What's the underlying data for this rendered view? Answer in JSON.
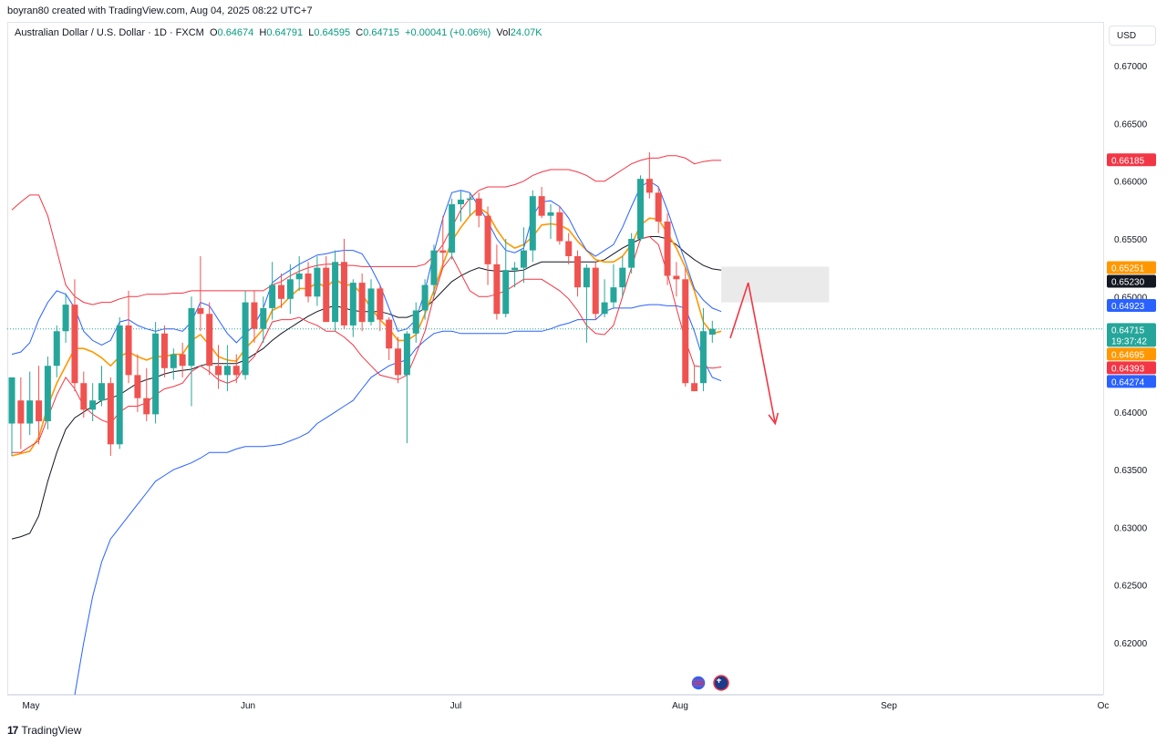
{
  "header": {
    "author_line": "boyran80 created with TradingView.com, Aug 04, 2025 08:22 UTC+7"
  },
  "legend": {
    "symbol": "Australian Dollar / U.S. Dollar · 1D · FXCM",
    "o_label": "O",
    "o_value": "0.64674",
    "h_label": "H",
    "h_value": "0.64791",
    "l_label": "L",
    "l_value": "0.64595",
    "c_label": "C",
    "c_value": "0.64715",
    "change": "+0.00041 (+0.06%)",
    "vol_label": "Vol",
    "vol_value": "24.07K"
  },
  "currency_button": "USD",
  "footer": {
    "brand": "TradingView",
    "logo_text": "17"
  },
  "colors": {
    "up": "#26a69a",
    "down": "#ef5350",
    "band_red": "#f23645",
    "band_blue": "#2962ff",
    "orange": "#ff9800",
    "black": "#131722",
    "zone": "#e8e8e8",
    "arrow": "#f23645"
  },
  "chart_data": {
    "type": "candlestick",
    "symbol": "AUDUSD",
    "timeframe": "1D",
    "ylim": [
      0.6155,
      0.6738
    ],
    "y_ticks": [
      "0.67000",
      "0.66500",
      "0.66000",
      "0.65500",
      "0.65000",
      "0.64500",
      "0.64000",
      "0.63500",
      "0.63000",
      "0.62500",
      "0.62000"
    ],
    "x_labels": [
      "May",
      "Jun",
      "Jul",
      "Aug",
      "Sep",
      "Oc"
    ],
    "candles": [
      {
        "o": 0.639,
        "h": 0.6425,
        "l": 0.6362,
        "c": 0.643
      },
      {
        "o": 0.641,
        "h": 0.643,
        "l": 0.6368,
        "c": 0.639
      },
      {
        "o": 0.639,
        "h": 0.6435,
        "l": 0.638,
        "c": 0.641
      },
      {
        "o": 0.641,
        "h": 0.644,
        "l": 0.6372,
        "c": 0.6392
      },
      {
        "o": 0.6392,
        "h": 0.6448,
        "l": 0.6385,
        "c": 0.644
      },
      {
        "o": 0.644,
        "h": 0.6475,
        "l": 0.643,
        "c": 0.647
      },
      {
        "o": 0.647,
        "h": 0.6503,
        "l": 0.646,
        "c": 0.6493
      },
      {
        "o": 0.6493,
        "h": 0.6515,
        "l": 0.6418,
        "c": 0.6425
      },
      {
        "o": 0.6425,
        "h": 0.6435,
        "l": 0.6395,
        "c": 0.6402
      },
      {
        "o": 0.6402,
        "h": 0.6425,
        "l": 0.6392,
        "c": 0.641
      },
      {
        "o": 0.641,
        "h": 0.644,
        "l": 0.6405,
        "c": 0.6425
      },
      {
        "o": 0.6425,
        "h": 0.643,
        "l": 0.6362,
        "c": 0.6372
      },
      {
        "o": 0.6372,
        "h": 0.6482,
        "l": 0.6368,
        "c": 0.6475
      },
      {
        "o": 0.6475,
        "h": 0.6505,
        "l": 0.6425,
        "c": 0.6432
      },
      {
        "o": 0.6432,
        "h": 0.645,
        "l": 0.64,
        "c": 0.6412
      },
      {
        "o": 0.6412,
        "h": 0.6438,
        "l": 0.6392,
        "c": 0.6398
      },
      {
        "o": 0.6398,
        "h": 0.6478,
        "l": 0.639,
        "c": 0.6468
      },
      {
        "o": 0.6468,
        "h": 0.6475,
        "l": 0.643,
        "c": 0.6438
      },
      {
        "o": 0.6438,
        "h": 0.6455,
        "l": 0.6428,
        "c": 0.645
      },
      {
        "o": 0.645,
        "h": 0.646,
        "l": 0.643,
        "c": 0.644
      },
      {
        "o": 0.644,
        "h": 0.65,
        "l": 0.6405,
        "c": 0.649
      },
      {
        "o": 0.649,
        "h": 0.6535,
        "l": 0.647,
        "c": 0.6485
      },
      {
        "o": 0.6485,
        "h": 0.6495,
        "l": 0.6432,
        "c": 0.644
      },
      {
        "o": 0.644,
        "h": 0.6458,
        "l": 0.642,
        "c": 0.6432
      },
      {
        "o": 0.6432,
        "h": 0.6458,
        "l": 0.6418,
        "c": 0.644
      },
      {
        "o": 0.644,
        "h": 0.645,
        "l": 0.6425,
        "c": 0.6432
      },
      {
        "o": 0.6432,
        "h": 0.6505,
        "l": 0.6428,
        "c": 0.6495
      },
      {
        "o": 0.6495,
        "h": 0.6505,
        "l": 0.646,
        "c": 0.6472
      },
      {
        "o": 0.6472,
        "h": 0.65,
        "l": 0.646,
        "c": 0.649
      },
      {
        "o": 0.649,
        "h": 0.653,
        "l": 0.648,
        "c": 0.651
      },
      {
        "o": 0.651,
        "h": 0.652,
        "l": 0.649,
        "c": 0.6498
      },
      {
        "o": 0.6498,
        "h": 0.6528,
        "l": 0.6485,
        "c": 0.6515
      },
      {
        "o": 0.6515,
        "h": 0.6535,
        "l": 0.6505,
        "c": 0.652
      },
      {
        "o": 0.652,
        "h": 0.653,
        "l": 0.6495,
        "c": 0.65
      },
      {
        "o": 0.65,
        "h": 0.6535,
        "l": 0.6492,
        "c": 0.6525
      },
      {
        "o": 0.6525,
        "h": 0.6535,
        "l": 0.6478,
        "c": 0.6478
      },
      {
        "o": 0.6478,
        "h": 0.654,
        "l": 0.647,
        "c": 0.653
      },
      {
        "o": 0.653,
        "h": 0.655,
        "l": 0.6472,
        "c": 0.6475
      },
      {
        "o": 0.6475,
        "h": 0.6515,
        "l": 0.6465,
        "c": 0.6512
      },
      {
        "o": 0.6512,
        "h": 0.652,
        "l": 0.647,
        "c": 0.6478
      },
      {
        "o": 0.6478,
        "h": 0.6515,
        "l": 0.6475,
        "c": 0.6507
      },
      {
        "o": 0.6507,
        "h": 0.651,
        "l": 0.647,
        "c": 0.648
      },
      {
        "o": 0.648,
        "h": 0.6482,
        "l": 0.6445,
        "c": 0.6455
      },
      {
        "o": 0.6455,
        "h": 0.6465,
        "l": 0.6425,
        "c": 0.6432
      },
      {
        "o": 0.6432,
        "h": 0.647,
        "l": 0.6373,
        "c": 0.6468
      },
      {
        "o": 0.6468,
        "h": 0.6495,
        "l": 0.646,
        "c": 0.6488
      },
      {
        "o": 0.6488,
        "h": 0.6515,
        "l": 0.648,
        "c": 0.651
      },
      {
        "o": 0.651,
        "h": 0.6545,
        "l": 0.65,
        "c": 0.654
      },
      {
        "o": 0.654,
        "h": 0.657,
        "l": 0.6525,
        "c": 0.6538
      },
      {
        "o": 0.6538,
        "h": 0.6585,
        "l": 0.6532,
        "c": 0.658
      },
      {
        "o": 0.658,
        "h": 0.6592,
        "l": 0.6565,
        "c": 0.6584
      },
      {
        "o": 0.6584,
        "h": 0.659,
        "l": 0.657,
        "c": 0.6585
      },
      {
        "o": 0.6585,
        "h": 0.659,
        "l": 0.656,
        "c": 0.657
      },
      {
        "o": 0.657,
        "h": 0.6578,
        "l": 0.651,
        "c": 0.6528
      },
      {
        "o": 0.6528,
        "h": 0.6545,
        "l": 0.648,
        "c": 0.6485
      },
      {
        "o": 0.6485,
        "h": 0.655,
        "l": 0.6482,
        "c": 0.6523
      },
      {
        "o": 0.6523,
        "h": 0.653,
        "l": 0.6508,
        "c": 0.6525
      },
      {
        "o": 0.6525,
        "h": 0.656,
        "l": 0.6512,
        "c": 0.654
      },
      {
        "o": 0.654,
        "h": 0.6592,
        "l": 0.653,
        "c": 0.6587
      },
      {
        "o": 0.6587,
        "h": 0.6595,
        "l": 0.6568,
        "c": 0.657
      },
      {
        "o": 0.657,
        "h": 0.658,
        "l": 0.655,
        "c": 0.6573
      },
      {
        "o": 0.6573,
        "h": 0.6578,
        "l": 0.6545,
        "c": 0.6548
      },
      {
        "o": 0.6548,
        "h": 0.6555,
        "l": 0.6528,
        "c": 0.6535
      },
      {
        "o": 0.6535,
        "h": 0.654,
        "l": 0.65,
        "c": 0.6508
      },
      {
        "o": 0.6508,
        "h": 0.6528,
        "l": 0.646,
        "c": 0.6525
      },
      {
        "o": 0.6525,
        "h": 0.653,
        "l": 0.648,
        "c": 0.6485
      },
      {
        "o": 0.6485,
        "h": 0.6515,
        "l": 0.6482,
        "c": 0.6495
      },
      {
        "o": 0.6495,
        "h": 0.6528,
        "l": 0.649,
        "c": 0.6508
      },
      {
        "o": 0.6508,
        "h": 0.6535,
        "l": 0.65,
        "c": 0.6525
      },
      {
        "o": 0.6525,
        "h": 0.6555,
        "l": 0.652,
        "c": 0.655
      },
      {
        "o": 0.655,
        "h": 0.6605,
        "l": 0.6548,
        "c": 0.6602
      },
      {
        "o": 0.6602,
        "h": 0.6625,
        "l": 0.6585,
        "c": 0.659
      },
      {
        "o": 0.659,
        "h": 0.6595,
        "l": 0.6555,
        "c": 0.6565
      },
      {
        "o": 0.6565,
        "h": 0.6572,
        "l": 0.651,
        "c": 0.6518
      },
      {
        "o": 0.6518,
        "h": 0.653,
        "l": 0.65,
        "c": 0.6515
      },
      {
        "o": 0.6515,
        "h": 0.6525,
        "l": 0.6422,
        "c": 0.6425
      },
      {
        "o": 0.6425,
        "h": 0.644,
        "l": 0.6418,
        "c": 0.6418
      },
      {
        "o": 0.6425,
        "h": 0.649,
        "l": 0.6418,
        "c": 0.647
      },
      {
        "o": 0.6467,
        "h": 0.6479,
        "l": 0.646,
        "c": 0.6472
      }
    ],
    "indicators": [
      {
        "name": "upper-band-red",
        "color": "#f23645",
        "values": [
          0.6575,
          0.6582,
          0.6588,
          0.6588,
          0.657,
          0.654,
          0.651,
          0.65,
          0.6495,
          0.6493,
          0.6495,
          0.6495,
          0.6498,
          0.65,
          0.65,
          0.6502,
          0.6502,
          0.6502,
          0.6503,
          0.6503,
          0.6505,
          0.6505,
          0.6505,
          0.6505,
          0.6505,
          0.6505,
          0.6505,
          0.6505,
          0.6505,
          0.651,
          0.6513,
          0.6518,
          0.6522,
          0.6525,
          0.6527,
          0.6528,
          0.6528,
          0.6527,
          0.6527,
          0.6526,
          0.6526,
          0.6526,
          0.6526,
          0.6526,
          0.6526,
          0.6526,
          0.6528,
          0.6535,
          0.6545,
          0.656,
          0.6575,
          0.6585,
          0.6592,
          0.6595,
          0.6595,
          0.6595,
          0.6597,
          0.66,
          0.6605,
          0.6608,
          0.661,
          0.661,
          0.661,
          0.6608,
          0.6605,
          0.66,
          0.66,
          0.6605,
          0.661,
          0.6615,
          0.6618,
          0.662,
          0.662,
          0.6622,
          0.6622,
          0.662,
          0.6615,
          0.6617,
          0.6618,
          0.6618
        ]
      },
      {
        "name": "lower-band-blue",
        "color": "#2962ff",
        "values": [
          null,
          null,
          null,
          null,
          null,
          null,
          null,
          0.6155,
          0.62,
          0.624,
          0.627,
          0.629,
          0.63,
          0.631,
          0.632,
          0.633,
          0.634,
          0.6345,
          0.635,
          0.6353,
          0.6356,
          0.636,
          0.6365,
          0.6365,
          0.6365,
          0.6368,
          0.637,
          0.637,
          0.637,
          0.6371,
          0.6372,
          0.6375,
          0.6378,
          0.6382,
          0.639,
          0.6395,
          0.64,
          0.6405,
          0.641,
          0.642,
          0.643,
          0.6435,
          0.644,
          0.6443,
          0.6445,
          0.6455,
          0.6462,
          0.6468,
          0.647,
          0.647,
          0.6468,
          0.6468,
          0.6468,
          0.6468,
          0.6468,
          0.6468,
          0.647,
          0.647,
          0.647,
          0.647,
          0.6472,
          0.6475,
          0.6477,
          0.648,
          0.648,
          0.648,
          0.6487,
          0.649,
          0.649,
          0.649,
          0.6492,
          0.6493,
          0.6493,
          0.6492,
          0.6492,
          0.649,
          0.647,
          0.6445,
          0.643,
          0.6427
        ]
      },
      {
        "name": "ma-black",
        "color": "#131722",
        "values": [
          0.629,
          0.6292,
          0.6295,
          0.631,
          0.634,
          0.6365,
          0.6385,
          0.6395,
          0.64,
          0.6405,
          0.641,
          0.6412,
          0.6415,
          0.642,
          0.6425,
          0.6428,
          0.643,
          0.6433,
          0.6435,
          0.6436,
          0.6437,
          0.644,
          0.6442,
          0.6442,
          0.6442,
          0.6442,
          0.6445,
          0.645,
          0.6455,
          0.6462,
          0.6468,
          0.6473,
          0.6478,
          0.6483,
          0.6487,
          0.649,
          0.6492,
          0.649,
          0.6488,
          0.6487,
          0.6487,
          0.6487,
          0.6485,
          0.6482,
          0.6482,
          0.6485,
          0.649,
          0.6497,
          0.6505,
          0.6513,
          0.6518,
          0.6522,
          0.6525,
          0.6523,
          0.6522,
          0.6522,
          0.6522,
          0.6523,
          0.6527,
          0.653,
          0.653,
          0.653,
          0.653,
          0.653,
          0.653,
          0.653,
          0.6532,
          0.6537,
          0.6542,
          0.6546,
          0.655,
          0.6552,
          0.6552,
          0.655,
          0.6545,
          0.6538,
          0.6532,
          0.6527,
          0.6524,
          0.6523
        ]
      },
      {
        "name": "ema-orange",
        "color": "#ff9800",
        "values": [
          0.6362,
          0.6364,
          0.6366,
          0.6378,
          0.6405,
          0.6425,
          0.644,
          0.6455,
          0.6455,
          0.6452,
          0.6447,
          0.644,
          0.6448,
          0.6452,
          0.6448,
          0.6445,
          0.6448,
          0.6448,
          0.645,
          0.645,
          0.6462,
          0.6467,
          0.6458,
          0.6448,
          0.6445,
          0.6444,
          0.6455,
          0.6463,
          0.6472,
          0.6488,
          0.6492,
          0.65,
          0.6507,
          0.6507,
          0.6512,
          0.6508,
          0.6515,
          0.651,
          0.651,
          0.6502,
          0.649,
          0.648,
          0.6472,
          0.6462,
          0.6462,
          0.6467,
          0.6485,
          0.6505,
          0.6528,
          0.6548,
          0.656,
          0.657,
          0.6577,
          0.6572,
          0.6558,
          0.6547,
          0.6542,
          0.6545,
          0.6552,
          0.6562,
          0.6563,
          0.6562,
          0.6558,
          0.6548,
          0.654,
          0.6532,
          0.653,
          0.653,
          0.6535,
          0.6545,
          0.6562,
          0.6568,
          0.6567,
          0.6555,
          0.6542,
          0.6525,
          0.6505,
          0.6478,
          0.6468,
          0.647
        ]
      },
      {
        "name": "band-blue-upper",
        "color": "#2962ff",
        "values": [
          0.645,
          0.6452,
          0.646,
          0.648,
          0.6495,
          0.6505,
          0.6502,
          0.649,
          0.647,
          0.6462,
          0.6458,
          0.6462,
          0.6478,
          0.648,
          0.6475,
          0.6472,
          0.647,
          0.6472,
          0.6472,
          0.647,
          0.6478,
          0.6495,
          0.6492,
          0.648,
          0.6468,
          0.646,
          0.6468,
          0.6475,
          0.649,
          0.6512,
          0.6518,
          0.6523,
          0.6528,
          0.6532,
          0.6536,
          0.6537,
          0.6539,
          0.654,
          0.654,
          0.6537,
          0.6525,
          0.651,
          0.649,
          0.647,
          0.6472,
          0.648,
          0.6505,
          0.6538,
          0.6568,
          0.659,
          0.6592,
          0.659,
          0.6578,
          0.6565,
          0.655,
          0.654,
          0.6538,
          0.6542,
          0.657,
          0.6582,
          0.6583,
          0.6578,
          0.6568,
          0.6553,
          0.654,
          0.6535,
          0.654,
          0.6545,
          0.656,
          0.6578,
          0.6595,
          0.66,
          0.6595,
          0.6575,
          0.6552,
          0.653,
          0.6507,
          0.6497,
          0.649,
          0.6487
        ]
      },
      {
        "name": "band-red-lower",
        "color": "#f23645",
        "values": [
          0.6365,
          0.6365,
          0.637,
          0.6375,
          0.6395,
          0.6415,
          0.643,
          0.642,
          0.6405,
          0.6398,
          0.6393,
          0.639,
          0.64,
          0.6405,
          0.6405,
          0.6408,
          0.6415,
          0.642,
          0.6422,
          0.6425,
          0.6435,
          0.644,
          0.6435,
          0.6428,
          0.6425,
          0.6428,
          0.644,
          0.6448,
          0.6462,
          0.6478,
          0.648,
          0.648,
          0.6482,
          0.6478,
          0.6475,
          0.647,
          0.647,
          0.6465,
          0.6458,
          0.6448,
          0.644,
          0.6432,
          0.643,
          0.6428,
          0.6432,
          0.645,
          0.647,
          0.65,
          0.6525,
          0.6535,
          0.652,
          0.6505,
          0.65,
          0.65,
          0.6502,
          0.6505,
          0.651,
          0.6515,
          0.6515,
          0.6515,
          0.651,
          0.6505,
          0.6498,
          0.6488,
          0.6475,
          0.6468,
          0.6467,
          0.6475,
          0.65,
          0.6525,
          0.655,
          0.6552,
          0.6545,
          0.652,
          0.649,
          0.6462,
          0.644,
          0.6439,
          0.6438,
          0.6439
        ]
      }
    ],
    "zone": {
      "x_from_index": 79,
      "x_to_index": 91,
      "y_top": 0.6526,
      "y_bottom": 0.6495
    },
    "arrow": {
      "points": [
        [
          80,
          0.6464
        ],
        [
          82,
          0.6512
        ],
        [
          85,
          0.639
        ]
      ]
    },
    "price_labels": [
      {
        "price": 0.66185,
        "label": "0.66185",
        "color": "#f23645",
        "text_color": "#ffffff"
      },
      {
        "price": 0.65251,
        "label": "0.65251",
        "color": "#ff9800",
        "text_color": "#ffffff"
      },
      {
        "price": 0.6523,
        "label": "0.65230",
        "color": "#131722",
        "text_color": "#ffffff"
      },
      {
        "price": 0.64923,
        "label": "0.64923",
        "color": "#2962ff",
        "text_color": "#ffffff"
      },
      {
        "price": 0.64715,
        "label": "0.64715",
        "sub": "19:37:42",
        "color": "#26a69a",
        "text_color": "#ffffff"
      },
      {
        "price": 0.64695,
        "label": "0.64695",
        "color": "#ff9800",
        "text_color": "#ffffff"
      },
      {
        "price": 0.64393,
        "label": "0.64393",
        "color": "#f23645",
        "text_color": "#ffffff"
      },
      {
        "price": 0.64274,
        "label": "0.64274",
        "color": "#2962ff",
        "text_color": "#ffffff"
      }
    ]
  }
}
